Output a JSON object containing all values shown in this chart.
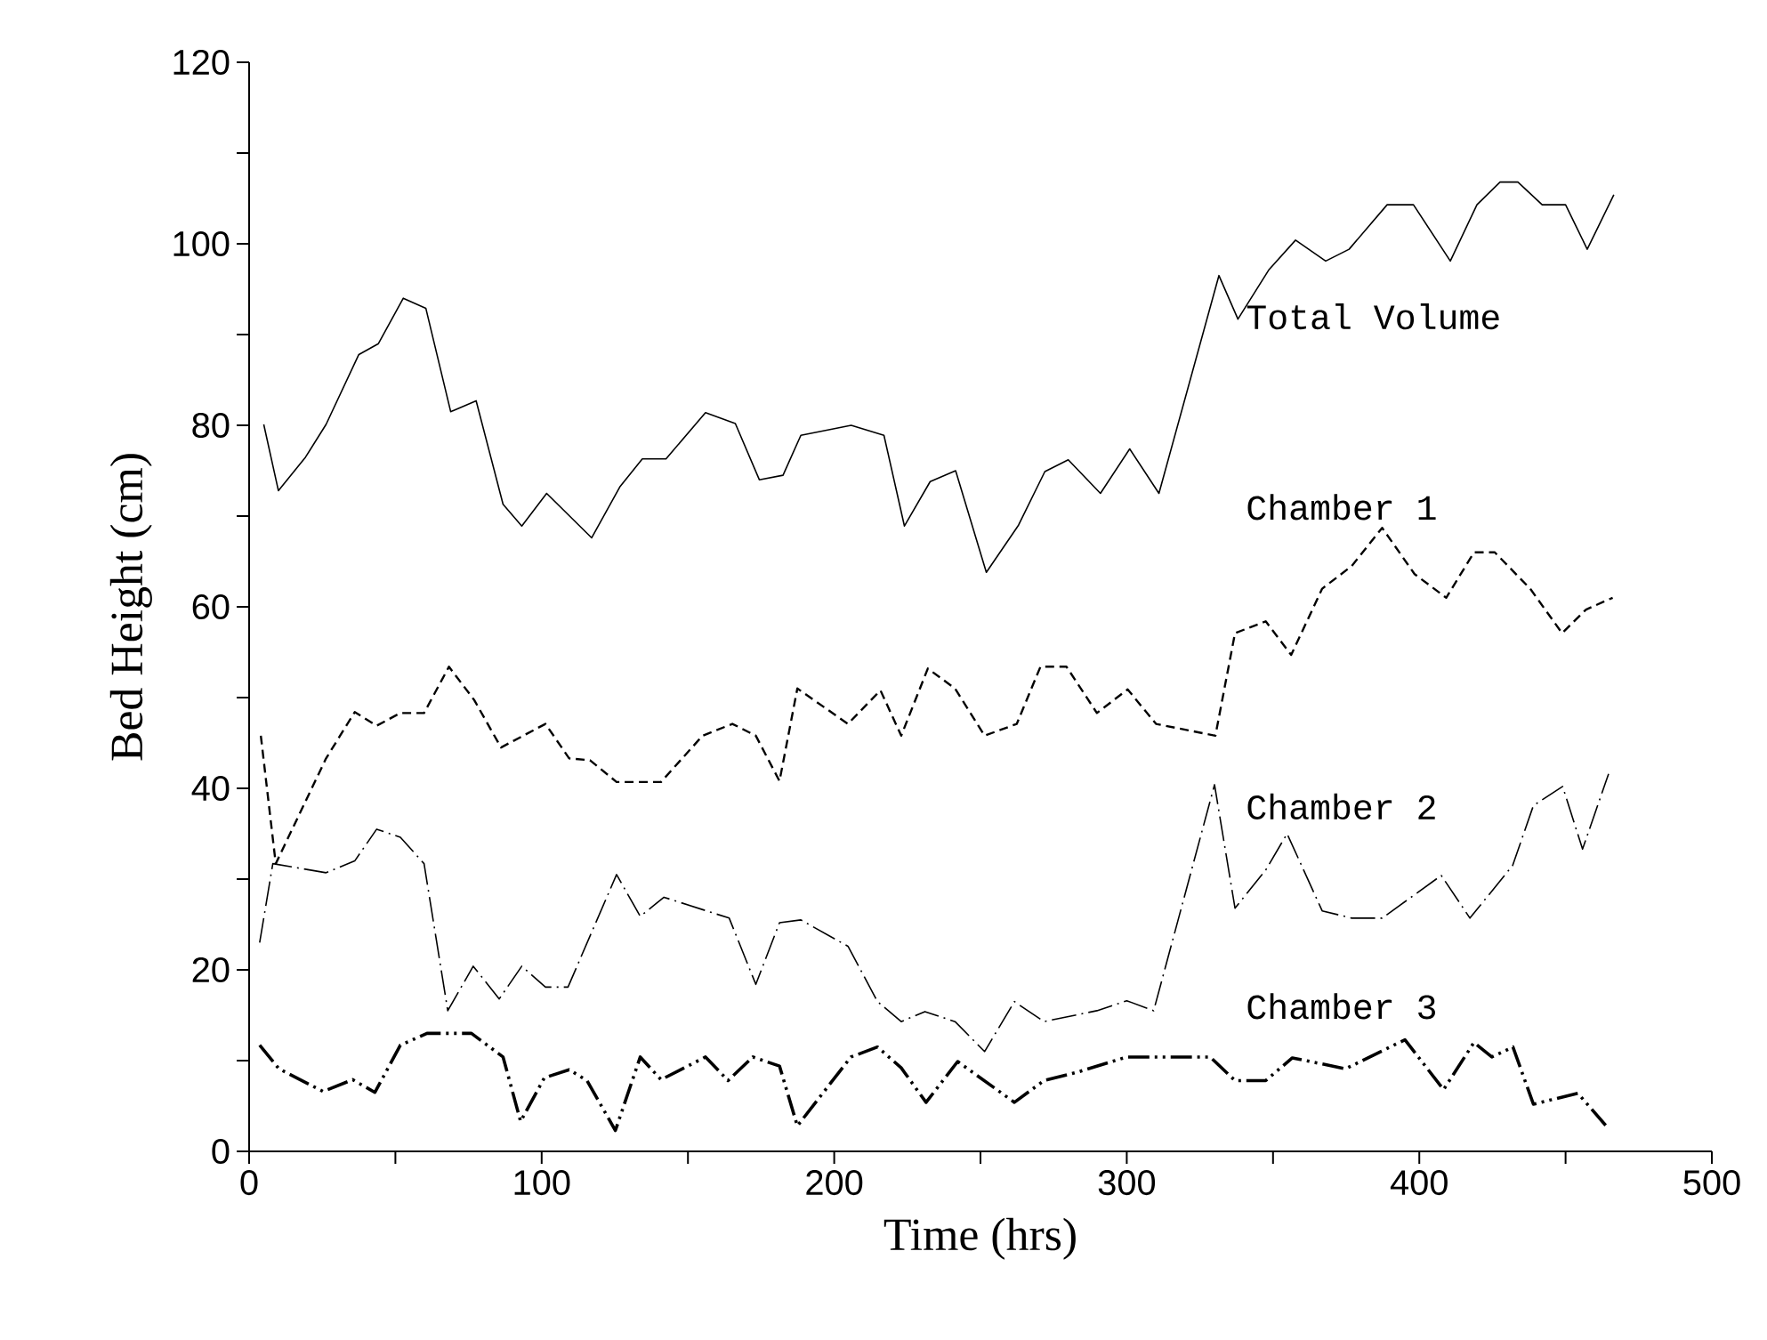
{
  "chart_data": {
    "type": "line",
    "xlabel": "Time (hrs)",
    "ylabel": "Bed Height (cm)",
    "xlim": [
      0,
      500
    ],
    "ylim": [
      0,
      120
    ],
    "xticks": [
      0,
      {
        "value": 50,
        "label": null
      },
      100,
      {
        "value": 150,
        "label": null
      },
      200,
      {
        "value": 250,
        "label": null
      },
      300,
      {
        "value": 350,
        "label": null
      },
      400,
      {
        "value": 450,
        "label": null
      },
      500
    ],
    "yticks": [
      0,
      {
        "value": 10,
        "label": null
      },
      20,
      {
        "value": 30,
        "label": null
      },
      40,
      {
        "value": 50,
        "label": null
      },
      60,
      {
        "value": 70,
        "label": null
      },
      80,
      {
        "value": 90,
        "label": null
      },
      100,
      {
        "value": 110,
        "label": null
      },
      120
    ],
    "marker": "none",
    "series": [
      {
        "name": "Total Volume",
        "color": "#000000",
        "line_style": "solid",
        "x": [
          5,
          10,
          19.3,
          26.3,
          37.5,
          44.2,
          52.7,
          60.4,
          68.9,
          77.6,
          86.8,
          93.2,
          101.7,
          117.1,
          126.7,
          134.4,
          142.5,
          156,
          166.2,
          174.4,
          182.5,
          188.6,
          205.8,
          217,
          224,
          232.8,
          241.5,
          252,
          263,
          272,
          280,
          291,
          301,
          311,
          331.5,
          338,
          348.5,
          357.7,
          368,
          376,
          389,
          398,
          410.6,
          419.7,
          427.6,
          433.7,
          442,
          450,
          457.4,
          466.5
        ],
        "values": [
          80.1,
          72.8,
          76.5,
          80.1,
          87.8,
          89,
          94,
          92.9,
          81.5,
          82.7,
          71.3,
          68.9,
          72.5,
          67.6,
          73.2,
          76.3,
          76.3,
          81.4,
          80.2,
          74,
          74.5,
          78.9,
          80,
          78.9,
          68.9,
          73.8,
          75,
          63.8,
          69,
          74.9,
          76.2,
          72.5,
          77.4,
          72.5,
          96.5,
          91.7,
          97.1,
          100.4,
          98.1,
          99.4,
          104.3,
          104.3,
          98.1,
          104.3,
          106.8,
          106.8,
          104.3,
          104.3,
          99.4,
          105.4
        ]
      },
      {
        "name": "Chamber 1",
        "color": "#000000",
        "line_style": "dashed",
        "x": [
          4,
          9.1,
          26.3,
          36.1,
          43.6,
          51.7,
          59.8,
          68.3,
          77,
          86.1,
          101.3,
          109.4,
          116.5,
          125.6,
          140.8,
          155,
          165.2,
          173.2,
          181.3,
          187.4,
          204.7,
          215.8,
          222.9,
          232,
          241.3,
          251.4,
          262.4,
          270.5,
          279.4,
          289.8,
          300.3,
          310,
          330.3,
          337,
          347.5,
          356.2,
          366.8,
          376.9,
          387.3,
          398.4,
          409.2,
          418.7,
          425.8,
          437.9,
          448.8,
          457,
          466.1
        ],
        "values": [
          45.8,
          31.7,
          43.3,
          48.4,
          46.9,
          48.3,
          48.3,
          53.4,
          49.7,
          44.5,
          47.1,
          43.3,
          43.1,
          40.7,
          40.7,
          45.8,
          47.1,
          45.8,
          40.8,
          51,
          47.1,
          50.8,
          45.8,
          53.2,
          51,
          45.8,
          47.1,
          53.4,
          53.4,
          48.3,
          50.9,
          47.1,
          45.8,
          57.1,
          58.4,
          54.7,
          62,
          64.5,
          68.7,
          63.6,
          61,
          66,
          66,
          62,
          57.1,
          59.7,
          61
        ]
      },
      {
        "name": "Chamber 2",
        "color": "#000000",
        "line_style": "dashdot",
        "x": [
          3.6,
          8.1,
          26.3,
          36.1,
          43.6,
          51.7,
          59.8,
          67.9,
          76.6,
          85.5,
          93.2,
          101.3,
          109,
          125.6,
          133.7,
          141.8,
          164.1,
          173.2,
          181.3,
          188.6,
          204.7,
          214.8,
          222.9,
          231,
          241.3,
          251.4,
          261.6,
          271.7,
          289.8,
          300,
          309.2,
          330,
          337,
          347.5,
          354.8,
          366.8,
          376.9,
          387.3,
          407.5,
          417.3,
          431.9,
          439,
          449,
          455.8,
          464.7
        ],
        "values": [
          23,
          31.7,
          30.7,
          32,
          35.5,
          34.6,
          31.7,
          15.5,
          20.4,
          16.8,
          20.4,
          18.1,
          18.1,
          30.5,
          25.9,
          28,
          25.7,
          18.4,
          25.2,
          25.5,
          22.6,
          16.5,
          14.3,
          15.4,
          14.3,
          11,
          16.5,
          14.3,
          15.5,
          16.6,
          15.5,
          40.4,
          26.8,
          31,
          35,
          26.5,
          25.7,
          25.7,
          30.4,
          25.7,
          31.5,
          38.1,
          40.2,
          33.3,
          41.6
        ]
      },
      {
        "name": "Chamber 3",
        "color": "#000000",
        "line_style": "dashdotdot",
        "x": [
          3.6,
          10.2,
          25.3,
          35.4,
          43,
          51.7,
          60.8,
          76,
          86.8,
          92.8,
          100.9,
          109.4,
          115.5,
          125.2,
          133.7,
          140.8,
          156,
          163.7,
          172.2,
          181.3,
          187.4,
          205.7,
          214.8,
          222.9,
          231.4,
          242.2,
          261.6,
          271.7,
          283.9,
          300,
          328.5,
          337,
          347.5,
          356.6,
          374.8,
          395.1,
          408.3,
          418.7,
          424.8,
          432,
          439,
          454.2,
          464.7
        ],
        "values": [
          11.7,
          9.1,
          6.6,
          7.9,
          6.5,
          11.7,
          13,
          13,
          10.4,
          3.3,
          8.1,
          9,
          7.8,
          2.3,
          10.4,
          7.9,
          10.4,
          7.8,
          10.4,
          9.4,
          2.8,
          10.4,
          11.5,
          9.2,
          5.4,
          9.9,
          5.4,
          7.8,
          8.8,
          10.4,
          10.4,
          7.8,
          7.8,
          10.3,
          9.1,
          12.3,
          6.8,
          12,
          10.4,
          11.5,
          5.2,
          6.4,
          2.5
        ]
      }
    ]
  }
}
